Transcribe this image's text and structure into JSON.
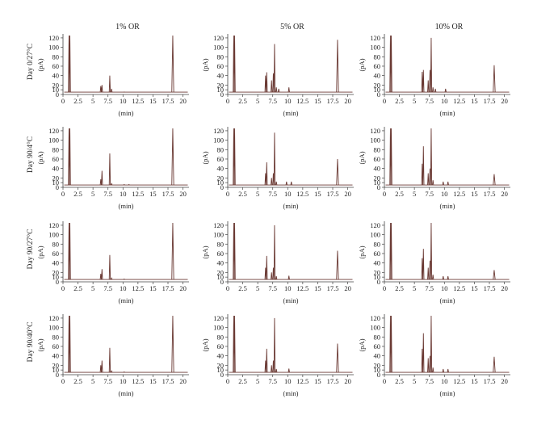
{
  "columns": [
    "1% OR",
    "5% OR",
    "10% OR"
  ],
  "rows": [
    "Day 0/27°C",
    "Day 90/4°C",
    "Day 90/27°C",
    "Day 90/40°C"
  ],
  "ylabel": "(pA)",
  "xlabel": "(min)",
  "colors": {
    "trace": "#6b3a34",
    "axis": "#444444"
  },
  "chart_data": {
    "type": "line",
    "layout": "4x3 grid of gas chromatograms",
    "x_ticks": [
      0,
      2.5,
      5,
      7.5,
      10,
      12.5,
      15,
      17.5,
      20
    ],
    "y_ticks": [
      0,
      10,
      20,
      40,
      60,
      80,
      100,
      120
    ],
    "xlim": [
      0,
      21
    ],
    "ylim": [
      0,
      125
    ],
    "baseline": 5,
    "charts": [
      {
        "row": "Day 0/27°C",
        "column": "1% OR",
        "peaks": [
          [
            1.0,
            130
          ],
          [
            1.15,
            130
          ],
          [
            6.3,
            18
          ],
          [
            6.5,
            20
          ],
          [
            7.8,
            40
          ],
          [
            8.1,
            12
          ],
          [
            10.2,
            5
          ],
          [
            18.3,
            128
          ]
        ]
      },
      {
        "row": "Day 0/27°C",
        "column": "5% OR",
        "peaks": [
          [
            1.0,
            130
          ],
          [
            1.15,
            130
          ],
          [
            6.3,
            40
          ],
          [
            6.5,
            47
          ],
          [
            7.3,
            30
          ],
          [
            7.6,
            45
          ],
          [
            7.8,
            107
          ],
          [
            8.1,
            15
          ],
          [
            8.5,
            12
          ],
          [
            10.2,
            15
          ],
          [
            18.3,
            116
          ]
        ]
      },
      {
        "row": "Day 0/27°C",
        "column": "10% OR",
        "peaks": [
          [
            1.0,
            130
          ],
          [
            1.15,
            130
          ],
          [
            6.3,
            48
          ],
          [
            6.5,
            52
          ],
          [
            7.3,
            30
          ],
          [
            7.6,
            52
          ],
          [
            7.8,
            120
          ],
          [
            8.1,
            15
          ],
          [
            8.5,
            12
          ],
          [
            10.2,
            12
          ],
          [
            18.3,
            62
          ]
        ]
      },
      {
        "row": "Day 90/4°C",
        "column": "1% OR",
        "peaks": [
          [
            1.0,
            130
          ],
          [
            1.15,
            130
          ],
          [
            6.3,
            17
          ],
          [
            6.5,
            35
          ],
          [
            7.8,
            72
          ],
          [
            8.1,
            8
          ],
          [
            10.2,
            6
          ],
          [
            11.0,
            6
          ],
          [
            18.3,
            128
          ]
        ]
      },
      {
        "row": "Day 90/4°C",
        "column": "5% OR",
        "peaks": [
          [
            1.0,
            130
          ],
          [
            1.15,
            130
          ],
          [
            6.3,
            30
          ],
          [
            6.5,
            53
          ],
          [
            7.3,
            20
          ],
          [
            7.6,
            30
          ],
          [
            7.8,
            116
          ],
          [
            8.1,
            12
          ],
          [
            9.8,
            12
          ],
          [
            10.6,
            12
          ],
          [
            18.3,
            60
          ]
        ]
      },
      {
        "row": "Day 90/4°C",
        "column": "10% OR",
        "peaks": [
          [
            1.0,
            130
          ],
          [
            1.15,
            130
          ],
          [
            6.3,
            50
          ],
          [
            6.5,
            87
          ],
          [
            7.3,
            30
          ],
          [
            7.6,
            40
          ],
          [
            7.8,
            128
          ],
          [
            8.1,
            15
          ],
          [
            9.8,
            12
          ],
          [
            10.6,
            12
          ],
          [
            18.3,
            28
          ]
        ]
      },
      {
        "row": "Day 90/27°C",
        "column": "1% OR",
        "peaks": [
          [
            1.0,
            130
          ],
          [
            1.15,
            130
          ],
          [
            6.3,
            17
          ],
          [
            6.5,
            27
          ],
          [
            7.8,
            57
          ],
          [
            8.1,
            8
          ],
          [
            10.2,
            6
          ],
          [
            18.3,
            128
          ]
        ]
      },
      {
        "row": "Day 90/27°C",
        "column": "5% OR",
        "peaks": [
          [
            1.0,
            130
          ],
          [
            1.15,
            130
          ],
          [
            6.3,
            30
          ],
          [
            6.5,
            55
          ],
          [
            7.3,
            20
          ],
          [
            7.6,
            30
          ],
          [
            7.8,
            120
          ],
          [
            8.1,
            12
          ],
          [
            10.2,
            13
          ],
          [
            18.3,
            66
          ]
        ]
      },
      {
        "row": "Day 90/27°C",
        "column": "10% OR",
        "peaks": [
          [
            1.0,
            130
          ],
          [
            1.15,
            130
          ],
          [
            6.3,
            50
          ],
          [
            6.5,
            70
          ],
          [
            7.3,
            30
          ],
          [
            7.6,
            45
          ],
          [
            7.8,
            128
          ],
          [
            8.1,
            15
          ],
          [
            9.8,
            12
          ],
          [
            10.6,
            12
          ],
          [
            18.3,
            25
          ]
        ]
      },
      {
        "row": "Day 90/40°C",
        "column": "1% OR",
        "peaks": [
          [
            1.0,
            130
          ],
          [
            1.15,
            130
          ],
          [
            6.3,
            20
          ],
          [
            6.5,
            30
          ],
          [
            7.8,
            57
          ],
          [
            8.1,
            8
          ],
          [
            10.2,
            6
          ],
          [
            18.3,
            128
          ]
        ]
      },
      {
        "row": "Day 90/40°C",
        "column": "5% OR",
        "peaks": [
          [
            1.0,
            130
          ],
          [
            1.15,
            130
          ],
          [
            6.3,
            30
          ],
          [
            6.5,
            55
          ],
          [
            7.3,
            20
          ],
          [
            7.6,
            30
          ],
          [
            7.8,
            120
          ],
          [
            8.1,
            12
          ],
          [
            10.2,
            13
          ],
          [
            18.3,
            66
          ]
        ]
      },
      {
        "row": "Day 90/40°C",
        "column": "10% OR",
        "peaks": [
          [
            1.0,
            130
          ],
          [
            1.15,
            130
          ],
          [
            6.3,
            55
          ],
          [
            6.5,
            88
          ],
          [
            7.3,
            35
          ],
          [
            7.6,
            40
          ],
          [
            7.8,
            128
          ],
          [
            8.1,
            15
          ],
          [
            9.8,
            12
          ],
          [
            10.6,
            12
          ],
          [
            18.3,
            38
          ]
        ]
      }
    ]
  }
}
